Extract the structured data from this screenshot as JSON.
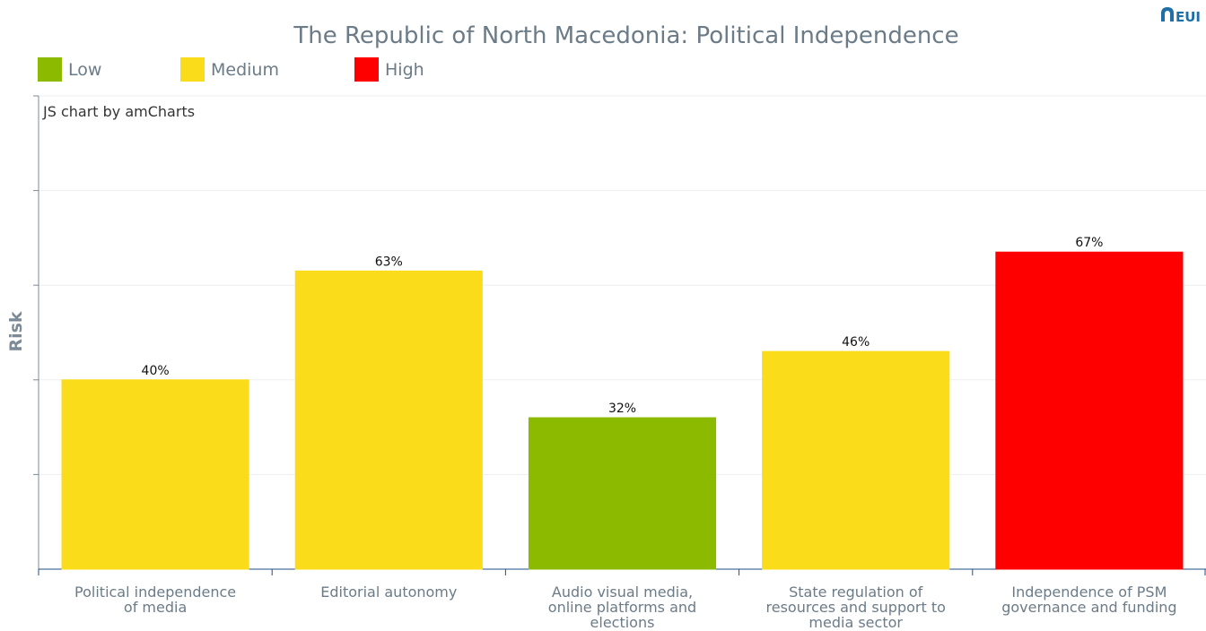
{
  "chart_data": {
    "type": "bar",
    "title": "The Republic of North Macedonia: Political Independence",
    "credit": "JS chart by amCharts",
    "ylabel": "Risk",
    "xlabel": "",
    "ylim": [
      0,
      100
    ],
    "grid": true,
    "legend_position": "top-left",
    "legend": [
      {
        "label": "Low",
        "color": "#8cba00"
      },
      {
        "label": "Medium",
        "color": "#fbdc1a"
      },
      {
        "label": "High",
        "color": "#fe0000"
      }
    ],
    "categories": [
      [
        "Political independence",
        "of media"
      ],
      [
        "Editorial autonomy"
      ],
      [
        "Audio visual media,",
        "online platforms and",
        "elections"
      ],
      [
        "State regulation of",
        "resources and support to",
        "media sector"
      ],
      [
        "Independence of PSM",
        "governance and funding"
      ]
    ],
    "values": [
      40,
      63,
      32,
      46,
      67
    ],
    "value_labels": [
      "40%",
      "63%",
      "32%",
      "46%",
      "67%"
    ],
    "risk_levels": [
      "Medium",
      "Medium",
      "Low",
      "Medium",
      "High"
    ]
  },
  "logo": {
    "text": "EUI",
    "icon": "eui-arch-icon",
    "color": "#1d6fa5"
  }
}
